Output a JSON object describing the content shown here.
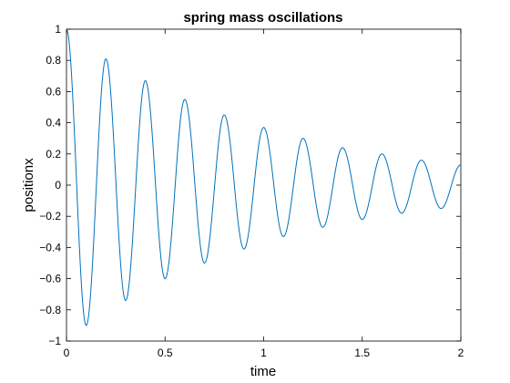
{
  "chart_data": {
    "type": "line",
    "title": "spring mass oscillations",
    "xlabel": "time",
    "ylabel": "positionx",
    "xlim": [
      0,
      2
    ],
    "ylim": [
      -1,
      1
    ],
    "grid": false,
    "legend": "none",
    "x_ticks": [
      0,
      0.5,
      1,
      1.5,
      2
    ],
    "x_tick_labels": [
      "0",
      "0.5",
      "1",
      "1.5",
      "2"
    ],
    "y_ticks": [
      -1,
      -0.8,
      -0.6,
      -0.4,
      -0.2,
      0,
      0.2,
      0.4,
      0.6,
      0.8,
      1
    ],
    "y_tick_labels": [
      "−1",
      "−0.8",
      "−0.6",
      "−0.4",
      "−0.2",
      "0",
      "0.2",
      "0.4",
      "0.6",
      "0.8",
      "1"
    ],
    "series": [
      {
        "color": "#0072bd",
        "x": [
          0,
          0.1,
          0.2,
          0.3,
          0.4,
          0.5,
          0.6,
          0.7,
          0.8,
          0.9,
          1.0,
          1.1,
          1.2,
          1.3,
          1.4,
          1.5,
          1.6,
          1.7,
          1.8,
          1.9,
          2.0
        ],
        "y": [
          1,
          -0.9,
          0.81,
          -0.74,
          0.67,
          -0.6,
          0.55,
          -0.5,
          0.45,
          -0.41,
          0.37,
          -0.33,
          0.3,
          -0.27,
          0.24,
          -0.22,
          0.2,
          -0.18,
          0.16,
          -0.15,
          0.13
        ]
      }
    ]
  }
}
